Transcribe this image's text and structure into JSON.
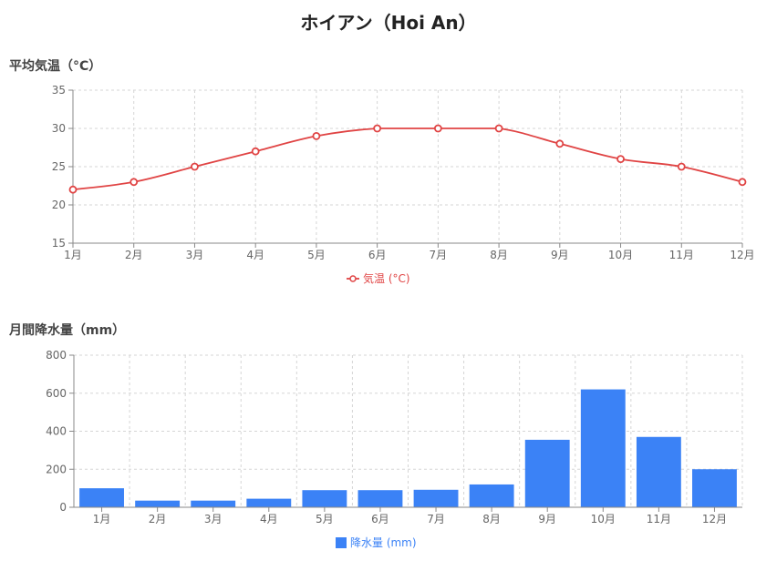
{
  "page": {
    "title": "ホイアン（Hoi An）"
  },
  "chart_data": [
    {
      "type": "line",
      "section_title": "平均気温（°C）",
      "categories": [
        "1月",
        "2月",
        "3月",
        "4月",
        "5月",
        "6月",
        "7月",
        "8月",
        "9月",
        "10月",
        "11月",
        "12月"
      ],
      "series": [
        {
          "name": "気温 (°C)",
          "values": [
            22,
            23,
            25,
            27,
            29,
            30,
            30,
            30,
            28,
            26,
            25,
            23
          ],
          "color": "#e04444"
        }
      ],
      "ylim": [
        15,
        35
      ],
      "yticks": [
        15,
        20,
        25,
        30,
        35
      ],
      "grid": true,
      "legend": "bottom-center"
    },
    {
      "type": "bar",
      "section_title": "月間降水量（mm）",
      "categories": [
        "1月",
        "2月",
        "3月",
        "4月",
        "5月",
        "6月",
        "7月",
        "8月",
        "9月",
        "10月",
        "11月",
        "12月"
      ],
      "series": [
        {
          "name": "降水量 (mm)",
          "values": [
            100,
            35,
            35,
            45,
            90,
            90,
            92,
            120,
            355,
            620,
            370,
            200
          ],
          "color": "#3b82f6"
        }
      ],
      "ylim": [
        0,
        800
      ],
      "yticks": [
        0,
        200,
        400,
        600,
        800
      ],
      "grid": true,
      "legend": "bottom-center"
    }
  ]
}
